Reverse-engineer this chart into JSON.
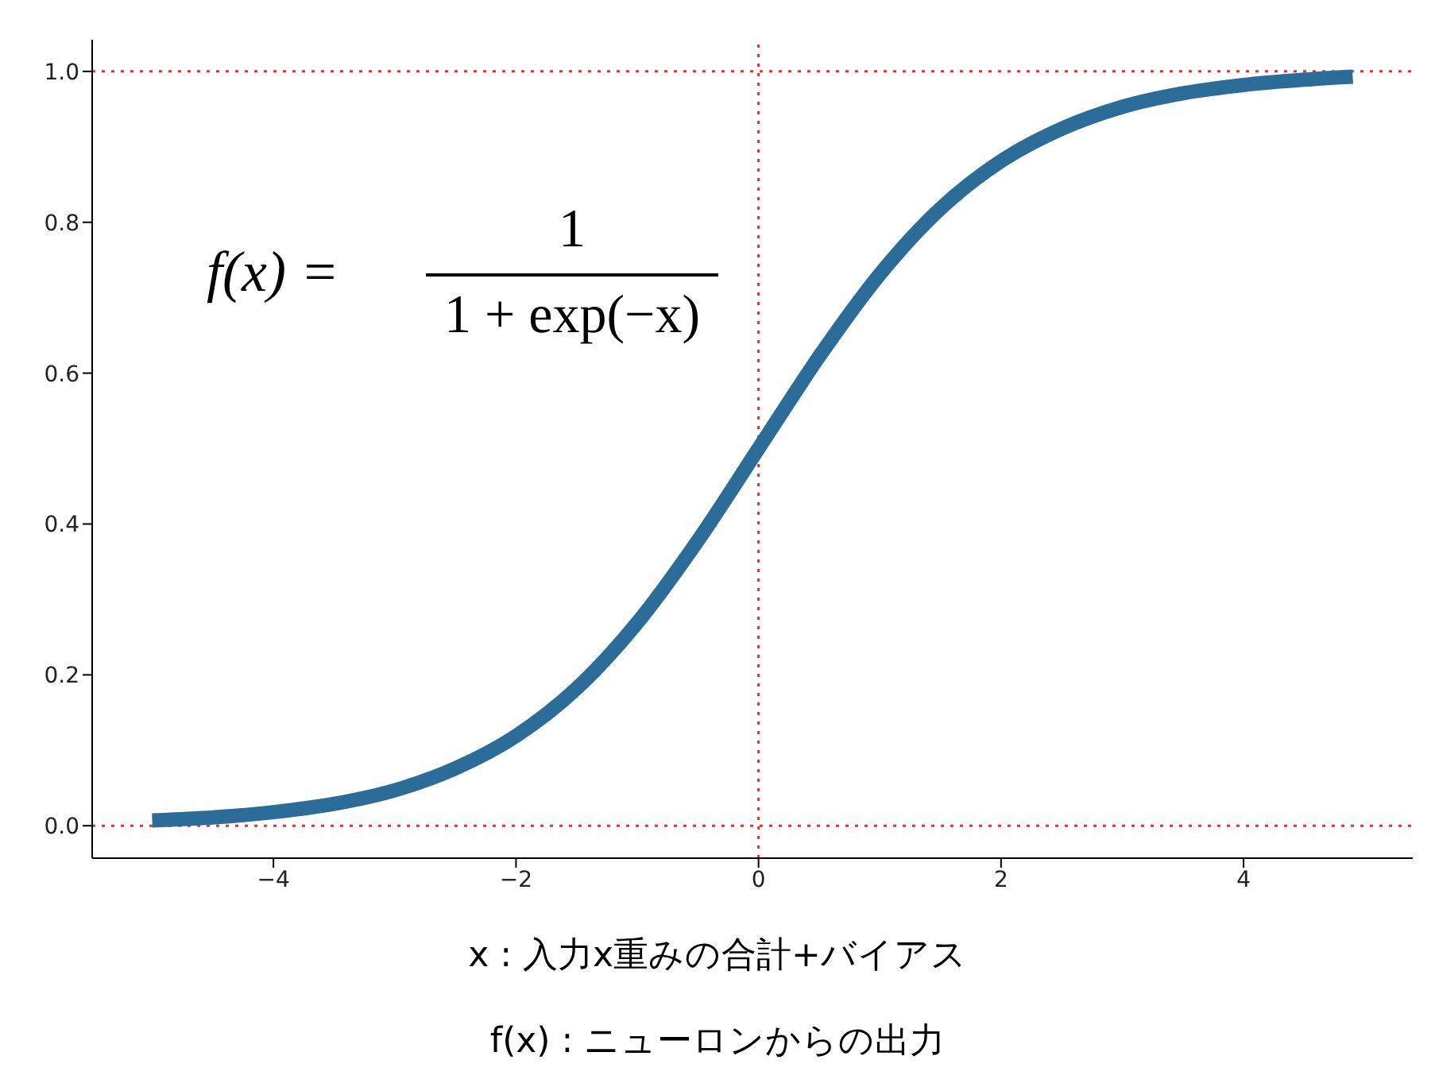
{
  "chart_data": {
    "type": "line",
    "x": [
      -5,
      -4.5,
      -4,
      -3.5,
      -3,
      -2.5,
      -2,
      -1.5,
      -1,
      -0.5,
      0,
      0.5,
      1,
      1.5,
      2,
      2.5,
      3,
      3.5,
      4,
      4.5,
      4.9
    ],
    "series": [
      {
        "color": "#2b6c98",
        "values": [
          0.007,
          0.011,
          0.018,
          0.029,
          0.047,
          0.076,
          0.119,
          0.182,
          0.269,
          0.378,
          0.5,
          0.622,
          0.731,
          0.818,
          0.881,
          0.924,
          0.953,
          0.971,
          0.982,
          0.989,
          0.993
        ]
      }
    ],
    "xlim": [
      -5.495,
      5.395
    ],
    "xticks": [
      {
        "value": -4,
        "label": "−4"
      },
      {
        "value": -2,
        "label": "−2"
      },
      0,
      2,
      4
    ],
    "ylim": [
      -0.043,
      1.042
    ],
    "yticks": [
      {
        "value": 0,
        "label": "0.0"
      },
      {
        "value": 0.2,
        "label": "0.2"
      },
      {
        "value": 0.4,
        "label": "0.4"
      },
      {
        "value": 0.6,
        "label": "0.6"
      },
      {
        "value": 0.8,
        "label": "0.8"
      },
      {
        "value": 1,
        "label": "1.0"
      }
    ],
    "ref_lines": [
      {
        "axis": "y",
        "value": 0,
        "color": "#e8312e",
        "line_style": "dotted"
      },
      {
        "axis": "y",
        "value": 1,
        "color": "#e8312e",
        "line_style": "dotted"
      },
      {
        "axis": "x",
        "value": 0,
        "color": "#e8312e",
        "line_style": "dotted"
      }
    ],
    "annotations": [
      "f(x)  =",
      "1",
      "1 + exp(−x)",
      "x : 入力x重みの合計+バイアス",
      "f(x) : ニューロンからの出力"
    ],
    "grid": false,
    "legend": false,
    "marker": "none",
    "line_style": "solid"
  }
}
